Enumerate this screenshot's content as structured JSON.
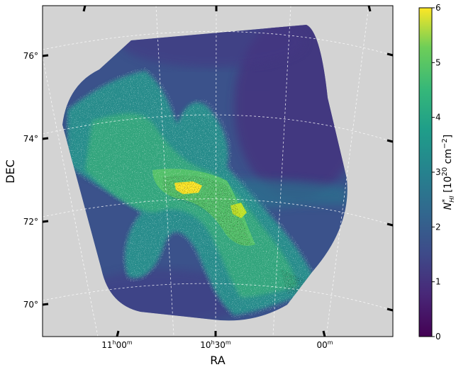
{
  "chart_data": {
    "type": "heatmap",
    "title": "",
    "xlabel": "RA",
    "ylabel": "DEC",
    "x_tick_labels": [
      {
        "value": "11h00m",
        "hours": "11",
        "hsup": "h",
        "mins": "00",
        "msup": "m"
      },
      {
        "value": "10h30m",
        "hours": "10",
        "hsup": "h",
        "mins": "30",
        "msup": "m"
      },
      {
        "value": "00m",
        "hours": "",
        "hsup": "",
        "mins": "00",
        "msup": "m"
      }
    ],
    "y_tick_labels": [
      "76°",
      "74°",
      "72°",
      "70°"
    ],
    "dec_range": [
      69.5,
      77.0
    ],
    "colorbar": {
      "label_main": "N",
      "label_sup": "*",
      "label_sub": "HI",
      "label_units_open": " [10",
      "label_units_exp": "20",
      "label_units_mid": " cm",
      "label_units_exp2": "−2",
      "label_units_close": "]",
      "min": 0,
      "max": 6,
      "ticks": [
        "0",
        "1",
        "2",
        "3",
        "4",
        "5",
        "6"
      ],
      "colormap": "viridis"
    },
    "grid": true,
    "background_color": "#d3d3d3",
    "grid_color": "#ffffff",
    "contour_colors": [
      "#ffffff",
      "#000000"
    ]
  }
}
